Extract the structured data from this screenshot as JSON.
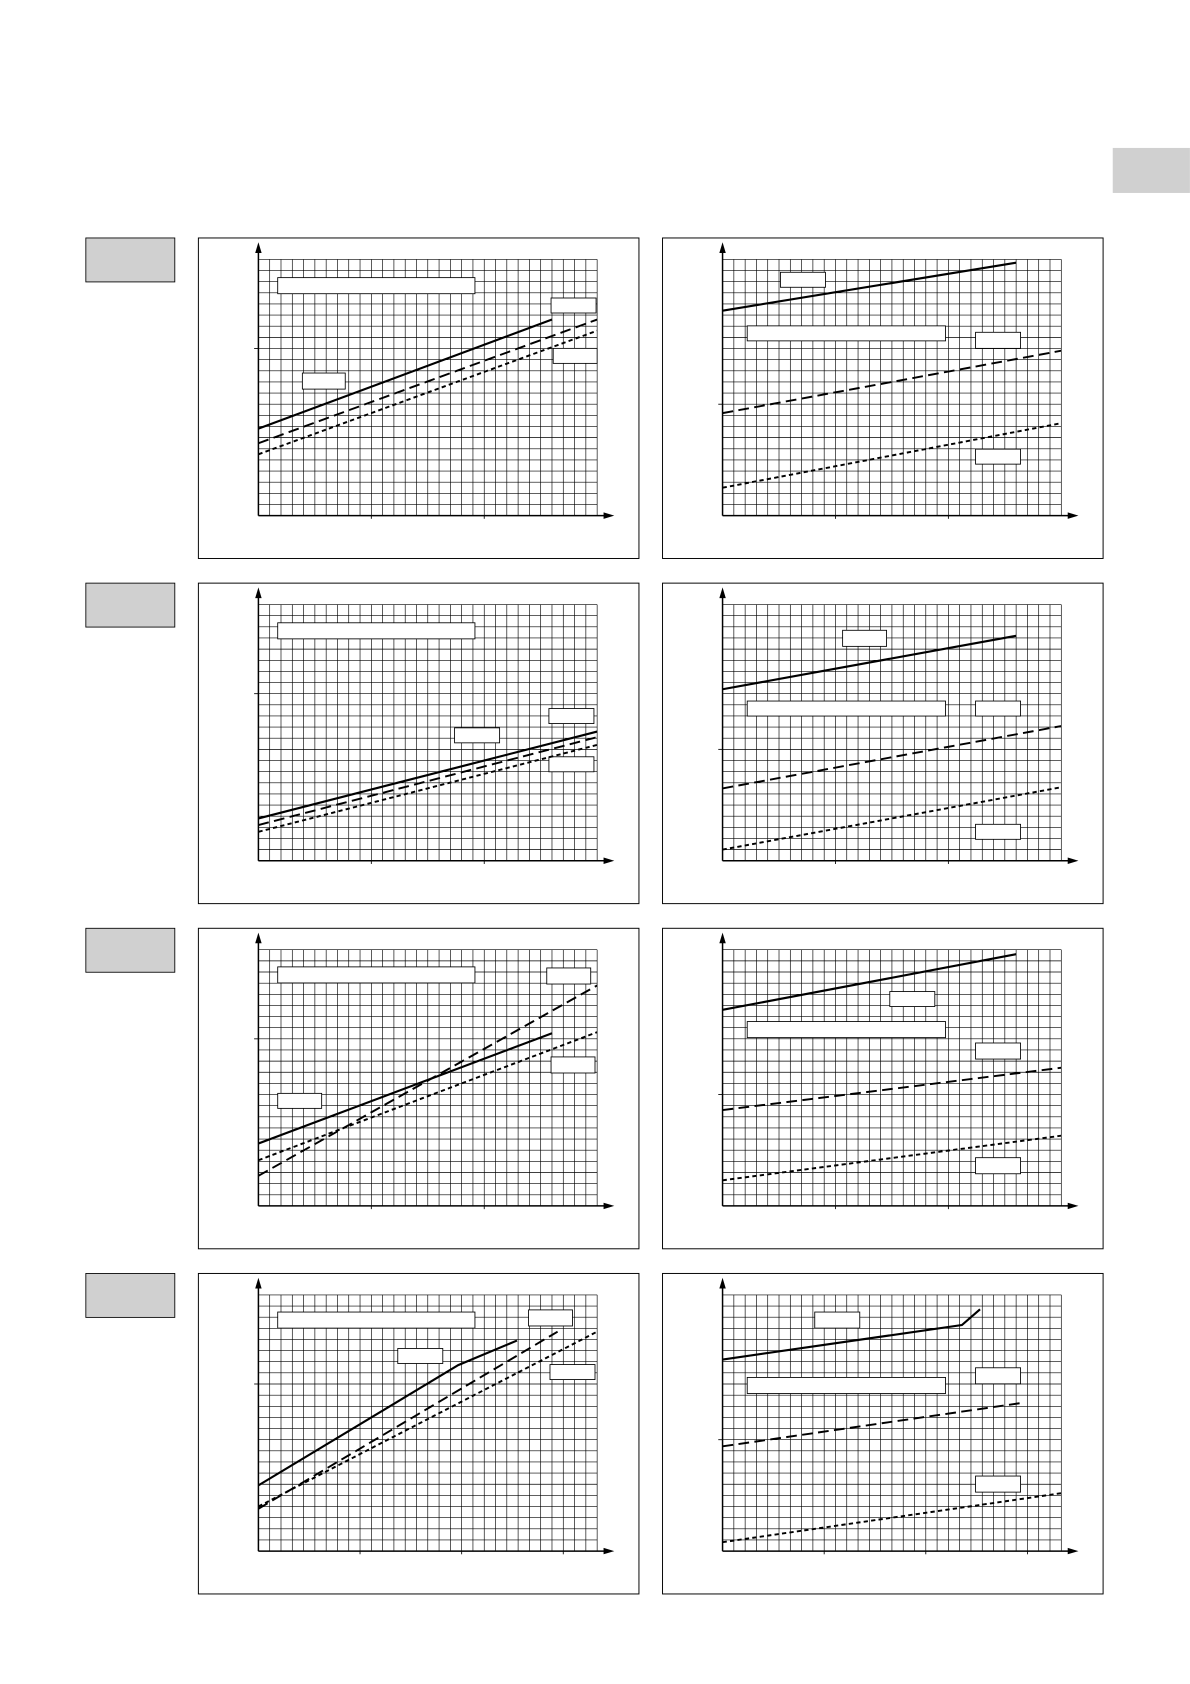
{
  "chart_data": [
    {
      "type": "line",
      "xlim": [
        0,
        30
      ],
      "ylim": [
        0,
        23
      ],
      "xticks": [
        10,
        20
      ],
      "yticks": [
        15
      ],
      "series": [
        {
          "style": "solid",
          "color": "#000000",
          "x": [
            0,
            26
          ],
          "values": [
            7.8,
            17.6
          ]
        },
        {
          "style": "dashed",
          "color": "#000000",
          "x": [
            0,
            30
          ],
          "values": [
            6.5,
            17.6
          ]
        },
        {
          "style": "dotted",
          "color": "#000000",
          "x": [
            0,
            30
          ],
          "values": [
            5.5,
            16.6
          ]
        }
      ]
    },
    {
      "type": "line",
      "xlim": [
        0,
        30
      ],
      "ylim": [
        0,
        23
      ],
      "xticks": [
        10,
        20
      ],
      "yticks": [
        10
      ],
      "series": [
        {
          "style": "solid",
          "color": "#000000",
          "x": [
            0,
            26
          ],
          "values": [
            18.4,
            22.7
          ]
        },
        {
          "style": "dashed",
          "color": "#000000",
          "x": [
            0,
            30
          ],
          "values": [
            9.2,
            14.8
          ]
        },
        {
          "style": "dotted",
          "color": "#000000",
          "x": [
            0,
            30
          ],
          "values": [
            2.5,
            8.3
          ]
        }
      ]
    },
    {
      "type": "line",
      "xlim": [
        0,
        30
      ],
      "ylim": [
        0,
        23
      ],
      "xticks": [
        10,
        20
      ],
      "yticks": [
        15
      ],
      "series": [
        {
          "style": "solid",
          "color": "#000000",
          "x": [
            0,
            30
          ],
          "values": [
            3.8,
            11.6
          ]
        },
        {
          "style": "dashed",
          "color": "#000000",
          "x": [
            0,
            30
          ],
          "values": [
            3.2,
            11.1
          ]
        },
        {
          "style": "dotted",
          "color": "#000000",
          "x": [
            0,
            30
          ],
          "values": [
            2.6,
            10.4
          ]
        }
      ]
    },
    {
      "type": "line",
      "xlim": [
        0,
        30
      ],
      "ylim": [
        0,
        23
      ],
      "xticks": [
        10,
        20
      ],
      "yticks": [
        10
      ],
      "series": [
        {
          "style": "solid",
          "color": "#000000",
          "x": [
            0,
            26
          ],
          "values": [
            15.4,
            20.2
          ]
        },
        {
          "style": "dashed",
          "color": "#000000",
          "x": [
            0,
            30
          ],
          "values": [
            6.5,
            12.1
          ]
        },
        {
          "style": "dotted",
          "color": "#000000",
          "x": [
            0,
            30
          ],
          "values": [
            1.0,
            6.6
          ]
        }
      ]
    },
    {
      "type": "line",
      "xlim": [
        0,
        30
      ],
      "ylim": [
        0,
        23
      ],
      "xticks": [
        10,
        20
      ],
      "yticks": [
        15
      ],
      "series": [
        {
          "style": "solid",
          "color": "#000000",
          "x": [
            0,
            26
          ],
          "values": [
            5.6,
            15.5
          ]
        },
        {
          "style": "dashed",
          "color": "#000000",
          "x": [
            0,
            30
          ],
          "values": [
            2.7,
            19.8
          ]
        },
        {
          "style": "dotted",
          "color": "#000000",
          "x": [
            0,
            30
          ],
          "values": [
            4.1,
            15.6
          ]
        }
      ]
    },
    {
      "type": "line",
      "xlim": [
        0,
        30
      ],
      "ylim": [
        0,
        23
      ],
      "xticks": [
        10,
        20
      ],
      "yticks": [
        10
      ],
      "series": [
        {
          "style": "solid",
          "color": "#000000",
          "x": [
            0,
            26
          ],
          "values": [
            17.6,
            22.6
          ]
        },
        {
          "style": "dashed",
          "color": "#000000",
          "x": [
            0,
            30
          ],
          "values": [
            8.6,
            12.4
          ]
        },
        {
          "style": "dotted",
          "color": "#000000",
          "x": [
            0,
            30
          ],
          "values": [
            2.3,
            6.3
          ]
        }
      ]
    },
    {
      "type": "line",
      "xlim": [
        0,
        30
      ],
      "ylim": [
        0,
        23
      ],
      "xticks": [
        9,
        18,
        27
      ],
      "yticks": [
        15
      ],
      "series": [
        {
          "style": "solid",
          "color": "#000000",
          "x": [
            0,
            17.7,
            22.9
          ],
          "values": [
            5.9,
            16.7,
            18.9
          ]
        },
        {
          "style": "dashed",
          "color": "#000000",
          "x": [
            0,
            26.5
          ],
          "values": [
            3.8,
            19.7
          ]
        },
        {
          "style": "dotted",
          "color": "#000000",
          "x": [
            0,
            30
          ],
          "values": [
            4.0,
            19.7
          ]
        }
      ]
    },
    {
      "type": "line",
      "xlim": [
        0,
        30
      ],
      "ylim": [
        0,
        23
      ],
      "xticks": [
        9,
        18,
        27
      ],
      "yticks": [
        10
      ],
      "series": [
        {
          "style": "solid",
          "color": "#000000",
          "x": [
            0,
            21.2,
            22.8
          ],
          "values": [
            17.2,
            20.3,
            21.7
          ]
        },
        {
          "style": "dashed",
          "color": "#000000",
          "x": [
            0,
            26.5
          ],
          "values": [
            9.4,
            13.3
          ]
        },
        {
          "style": "dotted",
          "color": "#000000",
          "x": [
            0,
            30
          ],
          "values": [
            0.8,
            5.2
          ]
        }
      ]
    }
  ]
}
